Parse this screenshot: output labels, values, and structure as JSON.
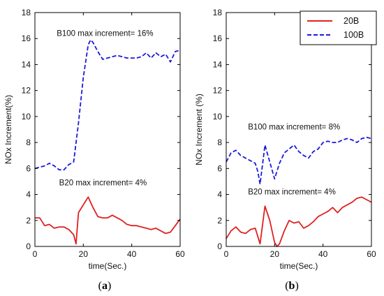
{
  "chart_data": [
    {
      "type": "line",
      "panel_label_open": "(",
      "panel_label_letter": "a",
      "panel_label_close": ")",
      "xlabel": "time(Sec.)",
      "ylabel": "NOx Increment(%)",
      "xlim": [
        0,
        60
      ],
      "ylim": [
        0,
        18
      ],
      "xticks": [
        0,
        20,
        40,
        60
      ],
      "yticks": [
        0,
        2,
        4,
        6,
        8,
        10,
        12,
        14,
        16,
        18
      ],
      "grid": false,
      "annotations": [
        {
          "text": "B100 max increment= 16%",
          "x": 9,
          "y": 16.2
        },
        {
          "text": "B20 max increment= 4%",
          "x": 10,
          "y": 4.7
        }
      ],
      "series": [
        {
          "key": "b100",
          "color": "#1a1adc",
          "style": "dashed",
          "x": [
            0,
            2,
            4,
            6,
            8,
            10,
            12,
            14,
            16,
            18,
            20,
            22,
            23,
            24,
            26,
            28,
            30,
            32,
            34,
            36,
            38,
            40,
            42,
            44,
            46,
            48,
            50,
            52,
            54,
            56,
            58,
            60
          ],
          "y": [
            6.0,
            6.1,
            6.2,
            6.4,
            6.2,
            5.9,
            5.9,
            6.3,
            6.5,
            9.5,
            13.0,
            15.5,
            15.9,
            15.7,
            15.0,
            14.4,
            14.5,
            14.6,
            14.7,
            14.6,
            14.5,
            14.5,
            14.5,
            14.6,
            14.9,
            14.5,
            14.9,
            14.6,
            14.8,
            14.2,
            15.0,
            15.1
          ]
        },
        {
          "key": "b20",
          "color": "#e02020",
          "style": "solid",
          "x": [
            0,
            2,
            4,
            6,
            8,
            10,
            12,
            14,
            16,
            17,
            18,
            20,
            22,
            24,
            26,
            28,
            30,
            32,
            34,
            36,
            38,
            40,
            42,
            44,
            46,
            48,
            50,
            52,
            54,
            56,
            58,
            60
          ],
          "y": [
            2.2,
            2.2,
            1.6,
            1.7,
            1.4,
            1.5,
            1.5,
            1.3,
            0.9,
            0.2,
            2.6,
            3.2,
            3.8,
            3.0,
            2.3,
            2.2,
            2.2,
            2.4,
            2.2,
            2.0,
            1.7,
            1.6,
            1.6,
            1.5,
            1.4,
            1.3,
            1.4,
            1.2,
            1.0,
            1.1,
            1.6,
            2.1
          ]
        }
      ]
    },
    {
      "type": "line",
      "panel_label_open": "(",
      "panel_label_letter": "b",
      "panel_label_close": ")",
      "xlabel": "time(Sec.)",
      "ylabel": "NOx Increment (%)",
      "xlim": [
        0,
        60
      ],
      "ylim": [
        0,
        18
      ],
      "xticks": [
        0,
        20,
        40,
        60
      ],
      "yticks": [
        0,
        2,
        4,
        6,
        8,
        10,
        12,
        14,
        16,
        18
      ],
      "grid": false,
      "legend_position": "top-right",
      "annotations": [
        {
          "text": "B100 max increment= 8%",
          "x": 9,
          "y": 9.0
        },
        {
          "text": "B20 max increment= 4%",
          "x": 9,
          "y": 4.0
        }
      ],
      "series": [
        {
          "key": "b20",
          "name": "20B",
          "color": "#e02020",
          "style": "solid",
          "x": [
            0,
            2,
            4,
            6,
            8,
            10,
            12,
            14,
            16,
            18,
            20,
            21,
            22,
            24,
            26,
            28,
            30,
            32,
            34,
            36,
            38,
            40,
            42,
            44,
            46,
            48,
            50,
            52,
            54,
            56,
            58,
            60
          ],
          "y": [
            0.6,
            1.2,
            1.5,
            1.1,
            1.0,
            1.3,
            1.4,
            0.2,
            3.1,
            2.0,
            0.3,
            0.0,
            0.2,
            1.2,
            2.0,
            1.8,
            1.9,
            1.4,
            1.6,
            1.9,
            2.3,
            2.5,
            2.7,
            3.0,
            2.6,
            3.0,
            3.2,
            3.4,
            3.7,
            3.8,
            3.6,
            3.4
          ]
        },
        {
          "key": "b100",
          "name": "100B",
          "color": "#1a1adc",
          "style": "dashed",
          "x": [
            0,
            2,
            4,
            6,
            8,
            10,
            12,
            13,
            14,
            16,
            18,
            20,
            22,
            24,
            26,
            28,
            30,
            32,
            34,
            36,
            38,
            40,
            42,
            44,
            46,
            48,
            50,
            52,
            54,
            56,
            58,
            60
          ],
          "y": [
            6.5,
            7.2,
            7.4,
            7.0,
            6.8,
            6.6,
            6.4,
            5.8,
            4.8,
            7.8,
            6.5,
            5.2,
            6.4,
            7.2,
            7.5,
            7.8,
            7.3,
            7.0,
            6.8,
            7.3,
            7.5,
            8.0,
            8.1,
            8.0,
            8.0,
            8.2,
            8.3,
            8.2,
            8.0,
            8.3,
            8.4,
            8.3
          ]
        }
      ]
    }
  ]
}
